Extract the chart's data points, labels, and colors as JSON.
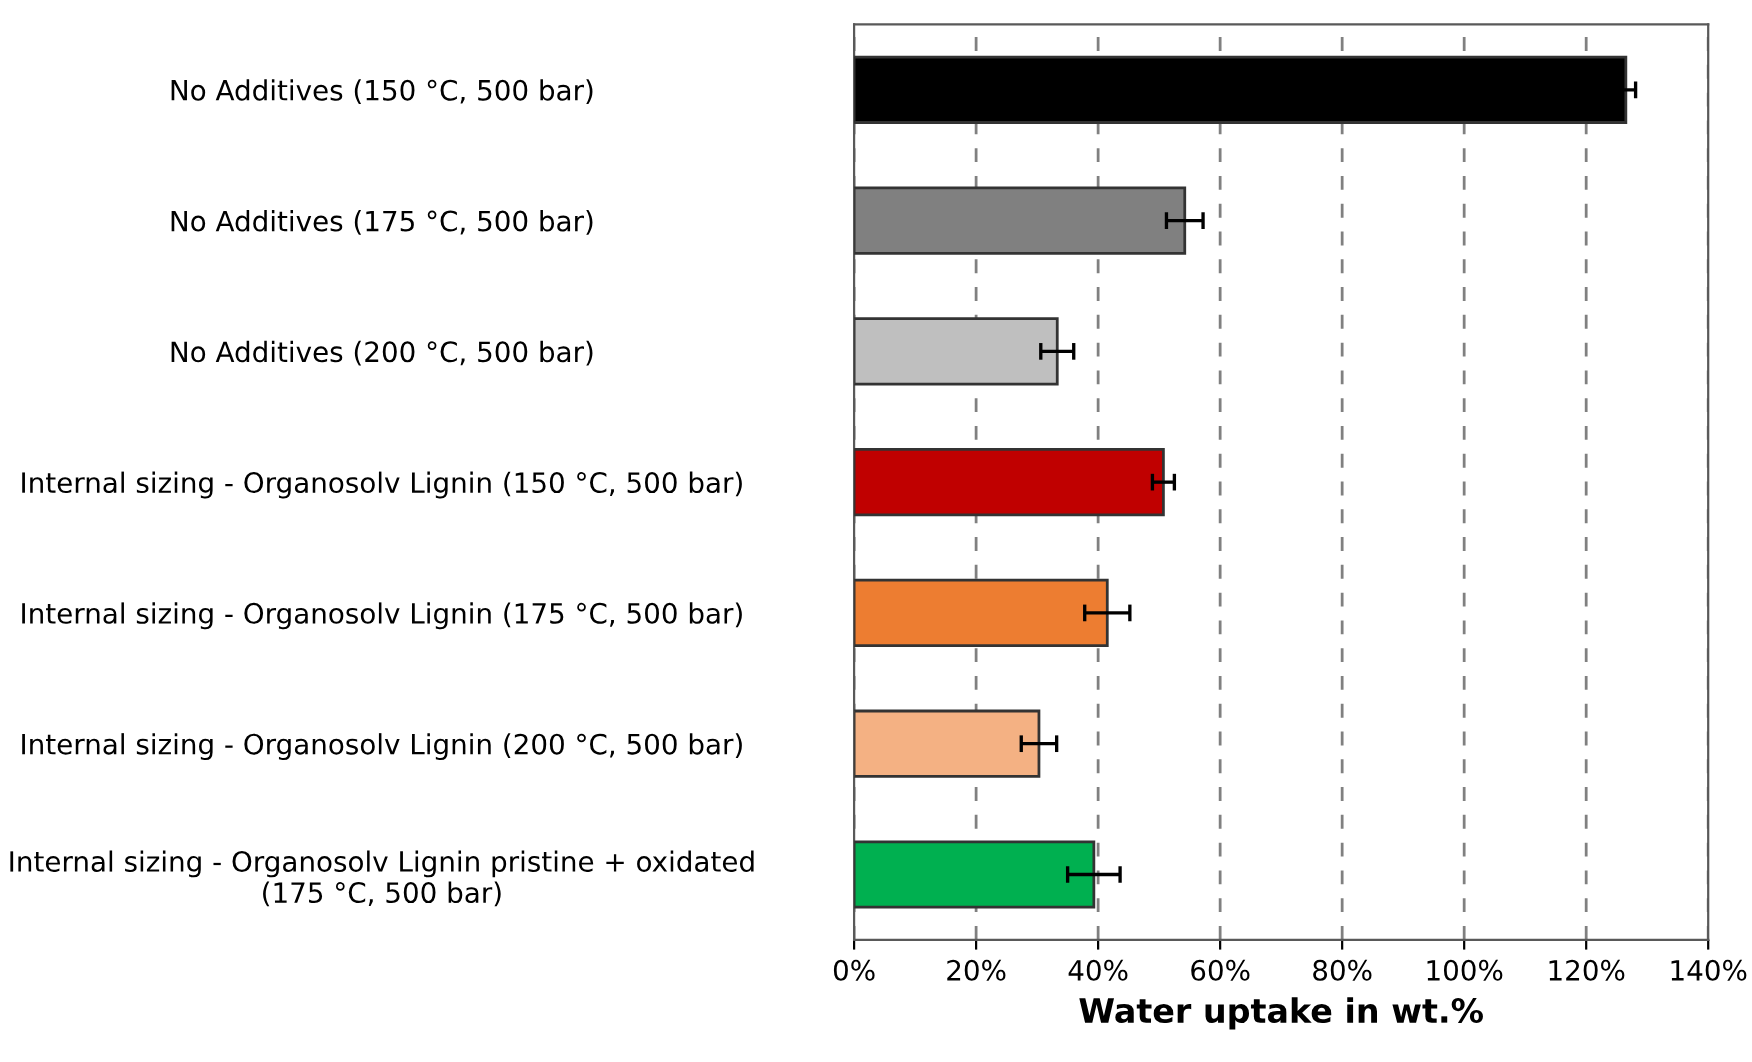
{
  "chart_data": {
    "type": "bar",
    "orientation": "horizontal",
    "xlabel": "Water uptake in wt.%",
    "categories": [
      "No Additives (150 °C, 500 bar)",
      "No Additives (175 °C, 500 bar)",
      "No Additives (200 °C, 500 bar)",
      "Internal sizing - Organosolv Lignin (150 °C, 500 bar)",
      "Internal sizing - Organosolv Lignin (175 °C, 500 bar)",
      "Internal sizing - Organosolv Lignin (200 °C, 500 bar)",
      "Internal sizing - Organosolv Lignin pristine + oxidated\n(175 °C, 500 bar)"
    ],
    "values": [
      126.5,
      54.2,
      33.3,
      50.7,
      41.5,
      30.3,
      39.3
    ],
    "errors": [
      1.6,
      3.0,
      2.7,
      1.8,
      3.7,
      2.9,
      4.3
    ],
    "colors": [
      "#000000",
      "#808080",
      "#bfbfbf",
      "#c00000",
      "#ed7d31",
      "#f4b183",
      "#00b050"
    ],
    "xlim": [
      0,
      140
    ],
    "xticks": [
      {
        "value": 0,
        "label": "0%"
      },
      {
        "value": 20,
        "label": "20%"
      },
      {
        "value": 40,
        "label": "40%"
      },
      {
        "value": 60,
        "label": "60%"
      },
      {
        "value": 80,
        "label": "80%"
      },
      {
        "value": 100,
        "label": "100%"
      },
      {
        "value": 120,
        "label": "120%"
      },
      {
        "value": 140,
        "label": "140%"
      }
    ],
    "grid": "x",
    "line_style": "dashed"
  }
}
